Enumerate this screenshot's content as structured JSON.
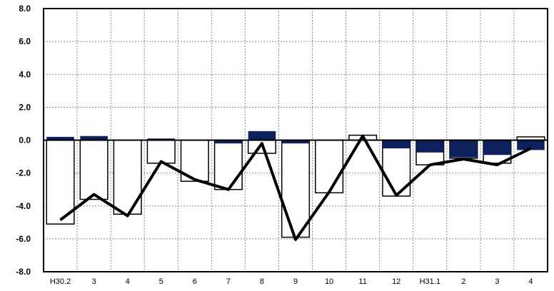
{
  "chart_data": {
    "type": "bar",
    "categories": [
      "H30.2",
      "3",
      "4",
      "5",
      "6",
      "7",
      "8",
      "9",
      "10",
      "11",
      "12",
      "H31.1",
      "2",
      "3",
      "4"
    ],
    "ylim": [
      -8.0,
      8.0
    ],
    "yticks": [
      "8.0",
      "6.0",
      "4.0",
      "2.0",
      "0.0",
      "-2.0",
      "-4.0",
      "-6.0",
      "-8.0"
    ],
    "ytick_values": [
      8,
      6,
      4,
      2,
      0,
      -2,
      -4,
      -6,
      -8
    ],
    "grid": true,
    "series": [
      {
        "kind": "bar-outline",
        "values": [
          -5.1,
          -3.6,
          -4.5,
          -1.4,
          -2.5,
          -3.0,
          -0.8,
          -5.9,
          -3.2,
          0.3,
          -3.4,
          -1.5,
          -1.1,
          -1.4,
          0.2
        ]
      },
      {
        "kind": "bar-filled",
        "values": [
          0.2,
          0.25,
          0.0,
          0.1,
          0.0,
          -0.2,
          0.55,
          -0.2,
          0.0,
          0.0,
          -0.5,
          -0.75,
          -1.05,
          -0.9,
          -0.6
        ]
      },
      {
        "kind": "line",
        "values": [
          -4.85,
          -3.3,
          -4.6,
          -1.3,
          -2.4,
          -3.0,
          -0.2,
          -6.05,
          -3.15,
          0.25,
          -3.35,
          -1.5,
          -1.15,
          -1.5,
          -0.5
        ]
      }
    ],
    "colors": {
      "filled": "#0d1f5c",
      "outline": "#000000",
      "line": "#000000",
      "grid": "#888888"
    }
  }
}
